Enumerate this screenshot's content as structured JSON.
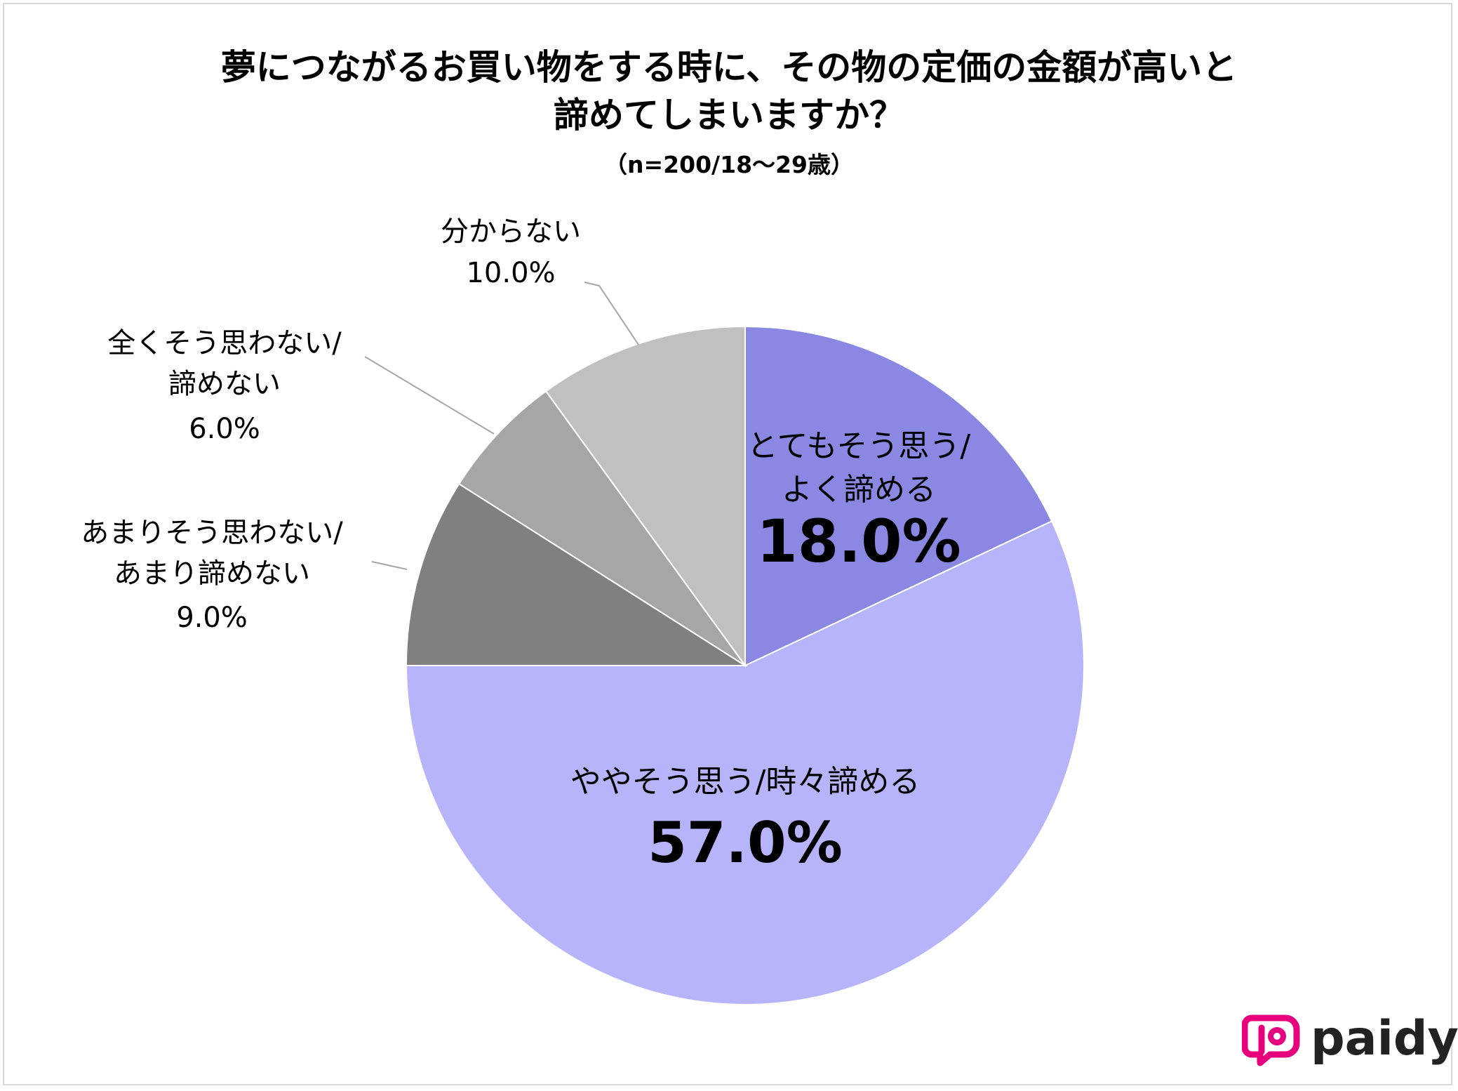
{
  "chart_data": {
    "type": "pie",
    "title_line1": "夢につながるお買い物をする時に、その物の定価の金額が高いと",
    "title_line2": "諦めてしまいますか？",
    "subtitle": "（n=200/18〜29歳）",
    "slices": [
      {
        "label": [
          "とてもそう思う/",
          "よく諦める"
        ],
        "value": 18.0,
        "value_label": "18.0%",
        "color": "#8a88e3"
      },
      {
        "label": [
          "ややそう思う/時々諦める"
        ],
        "value": 57.0,
        "value_label": "57.0%",
        "color": "#b7b4fb"
      },
      {
        "label": [
          "あまりそう思わない/",
          "あまり諦めない"
        ],
        "value": 9.0,
        "value_label": "9.0%",
        "color": "#808080"
      },
      {
        "label": [
          "全くそう思わない/",
          "諦めない"
        ],
        "value": 6.0,
        "value_label": "6.0%",
        "color": "#a6a6a6"
      },
      {
        "label": [
          "分からない"
        ],
        "value": 10.0,
        "value_label": "10.0%",
        "color": "#c0c0c0"
      }
    ]
  },
  "logo": {
    "text": "paidy",
    "color": "#e6007e"
  }
}
